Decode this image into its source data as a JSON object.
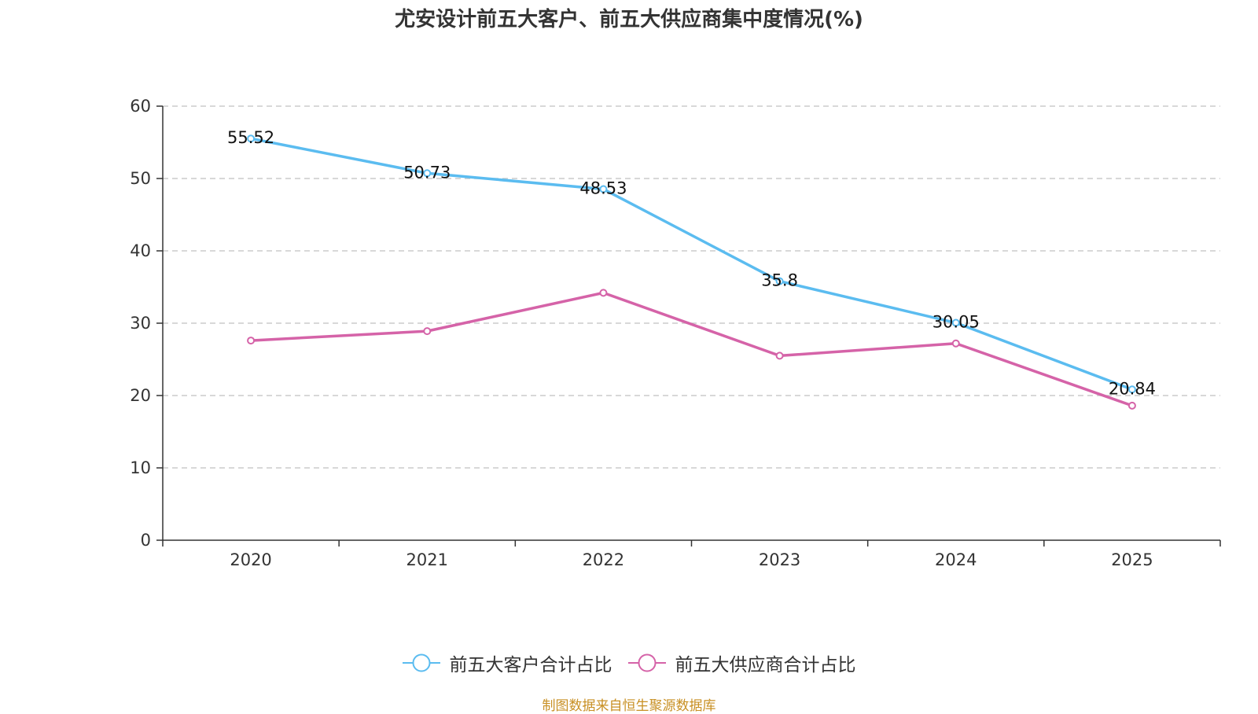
{
  "chart_data": {
    "type": "line",
    "title": "尤安设计前五大客户、前五大供应商集中度情况(%)",
    "categories": [
      "2020",
      "2021",
      "2022",
      "2023",
      "2024",
      "2025"
    ],
    "xlabel": "",
    "ylabel": "",
    "ylim": [
      0,
      60
    ],
    "yticks": [
      0,
      10,
      20,
      30,
      40,
      50,
      60
    ],
    "grid": true,
    "legend_position": "bottom",
    "series": [
      {
        "name": "前五大客户合计占比",
        "color": "#5bbcf0",
        "values": [
          55.52,
          50.73,
          48.53,
          35.8,
          30.05,
          20.84
        ],
        "show_labels": true
      },
      {
        "name": "前五大供应商合计占比",
        "color": "#d563a8",
        "values": [
          27.6,
          28.9,
          34.2,
          25.5,
          27.2,
          18.6
        ],
        "show_labels": false
      }
    ]
  },
  "legend": {
    "items": [
      {
        "label": "前五大客户合计占比",
        "color": "#5bbcf0"
      },
      {
        "label": "前五大供应商合计占比",
        "color": "#d563a8"
      }
    ]
  },
  "source": "制图数据来自恒生聚源数据库"
}
